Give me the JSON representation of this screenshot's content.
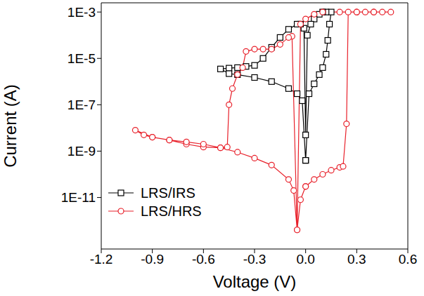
{
  "chart_data": {
    "type": "line",
    "x_label": "Voltage (V)",
    "y_label": "Current (A)",
    "log": "y",
    "grid": false,
    "legend": "lower left",
    "xlim": [
      -1.2,
      0.6
    ],
    "xticks": [
      -1.2,
      -0.9,
      -0.6,
      -0.3,
      {
        "value": 0,
        "label": "0.0"
      },
      0.3,
      0.6
    ],
    "ylim": [
      6e-14,
      0.0025
    ],
    "yticks": [
      {
        "value": 0.001,
        "label": "1E-3"
      },
      {
        "value": 1e-05,
        "label": "1E-5"
      },
      {
        "value": 1e-07,
        "label": "1E-7"
      },
      {
        "value": 1e-09,
        "label": "1E-9"
      },
      {
        "value": 1e-11,
        "label": "1E-11"
      }
    ],
    "series": [
      {
        "name": "LRS/IRS",
        "color": "#000000",
        "marker": "square",
        "line_style": "solid",
        "x": [
          0.0,
          0.02,
          0.05,
          0.08,
          0.1,
          0.12,
          0.13,
          0.14,
          0.15,
          0.12,
          0.1,
          0.08,
          0.05,
          0.03,
          0.01,
          0.0,
          -0.01,
          -0.03,
          -0.05,
          -0.1,
          -0.15,
          -0.2,
          -0.25,
          -0.3,
          -0.35,
          -0.4,
          -0.45,
          -0.5,
          -0.45,
          -0.4,
          -0.3,
          -0.2,
          -0.1,
          -0.05,
          -0.02,
          0.0
        ],
        "values": [
          4e-10,
          3e-07,
          8e-07,
          2e-06,
          4e-06,
          1.5e-05,
          6e-05,
          0.0003,
          0.001,
          0.001,
          0.001,
          0.0008,
          0.0005,
          0.0003,
          0.0001,
          5e-09,
          0.0002,
          0.0003,
          0.0003,
          0.00018,
          8e-05,
          3e-05,
          1e-05,
          5e-06,
          4.5e-06,
          4e-06,
          3.8e-06,
          3.5e-06,
          2.2e-06,
          2e-06,
          1.5e-06,
          1e-06,
          5e-07,
          3e-07,
          1.5e-07,
          4e-10
        ]
      },
      {
        "name": "LRS/HRS",
        "color": "#e8212b",
        "marker": "circle",
        "line_style": "solid",
        "x": [
          0.0,
          0.05,
          0.1,
          0.15,
          0.2,
          0.22,
          0.24,
          0.25,
          0.3,
          0.35,
          0.4,
          0.45,
          0.5,
          0.4,
          0.3,
          0.2,
          0.1,
          0.05,
          0.0,
          -0.03,
          -0.05,
          -0.08,
          -0.1,
          -0.15,
          -0.2,
          -0.25,
          -0.3,
          -0.35,
          -0.37,
          -0.4,
          -0.43,
          -0.45,
          -0.46,
          -0.5,
          -0.6,
          -0.7,
          -0.8,
          -0.9,
          -1.0,
          -0.95,
          -0.9,
          -0.8,
          -0.7,
          -0.6,
          -0.5,
          -0.4,
          -0.3,
          -0.2,
          -0.1,
          -0.07,
          -0.05,
          -0.03,
          0.0
        ],
        "values": [
          3e-11,
          6e-11,
          1e-10,
          1.5e-10,
          2e-10,
          2.2e-10,
          1.5e-08,
          0.001,
          0.001,
          0.001,
          0.001,
          0.001,
          0.001,
          0.001,
          0.001,
          0.001,
          0.001,
          0.0008,
          0.0005,
          0.0003,
          4e-13,
          9e-05,
          8e-05,
          4e-05,
          2.5e-05,
          2.5e-05,
          2.5e-05,
          2e-05,
          4e-06,
          2e-06,
          5e-07,
          1e-07,
          1.5e-09,
          1.4e-09,
          1.5e-09,
          2e-09,
          3e-09,
          4e-09,
          8e-09,
          5e-09,
          4e-09,
          3e-09,
          2.5e-09,
          2e-09,
          1.4e-09,
          9e-10,
          5e-10,
          2.5e-10,
          6e-11,
          2e-11,
          4e-13,
          8e-12,
          3e-11
        ]
      }
    ]
  }
}
